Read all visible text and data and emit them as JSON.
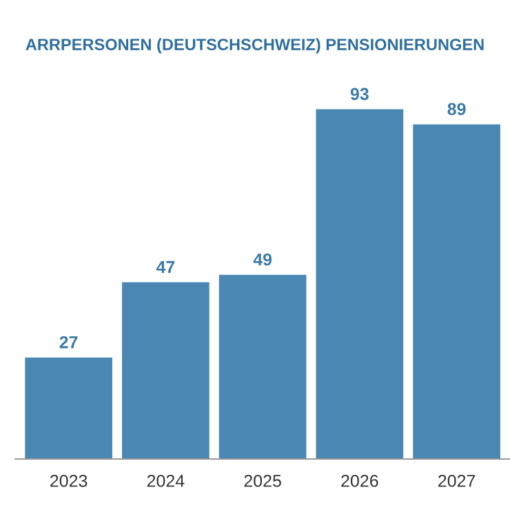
{
  "chart_data": {
    "type": "bar",
    "title": "ARRPERSONEN (DEUTSCHSCHWEIZ) PENSIONIERUNGEN",
    "categories": [
      "2023",
      "2024",
      "2025",
      "2026",
      "2027"
    ],
    "values": [
      27,
      47,
      49,
      93,
      89
    ],
    "color": "#4a87b3",
    "data_labels": true,
    "grid": false,
    "legend": false
  }
}
